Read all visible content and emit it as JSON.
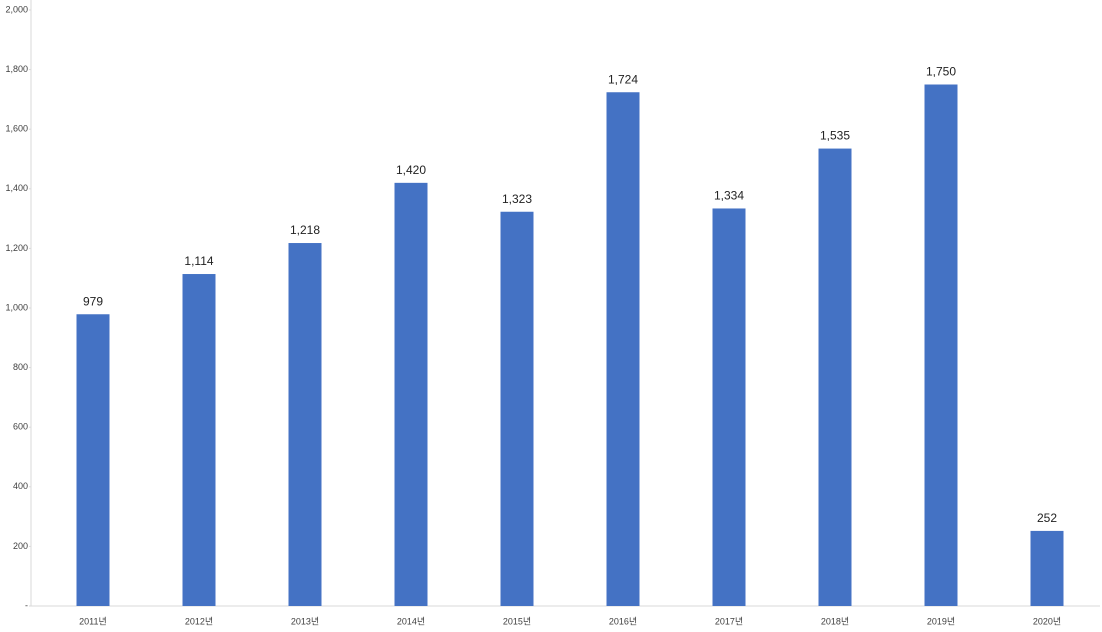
{
  "chart_data": {
    "type": "bar",
    "categories": [
      "2011년",
      "2012년",
      "2013년",
      "2014년",
      "2015년",
      "2016년",
      "2017년",
      "2018년",
      "2019년",
      "2020년"
    ],
    "values": [
      979,
      1114,
      1218,
      1420,
      1323,
      1724,
      1334,
      1535,
      1750,
      252
    ],
    "value_labels": [
      "979",
      "1,114",
      "1,218",
      "1,420",
      "1,323",
      "1,724",
      "1,334",
      "1,535",
      "1,750",
      "252"
    ],
    "color": "#4472c4",
    "ylim": [
      0,
      2000
    ],
    "yticks": [
      {
        "value": 0,
        "label": "-"
      },
      200,
      400,
      600,
      800,
      {
        "value": 1000,
        "label": "1,000"
      },
      {
        "value": 1200,
        "label": "1,200"
      },
      {
        "value": 1400,
        "label": "1,400"
      },
      {
        "value": 1600,
        "label": "1,600"
      },
      {
        "value": 1800,
        "label": "1,800"
      },
      {
        "value": 2000,
        "label": "2,000"
      }
    ],
    "grid": false
  }
}
